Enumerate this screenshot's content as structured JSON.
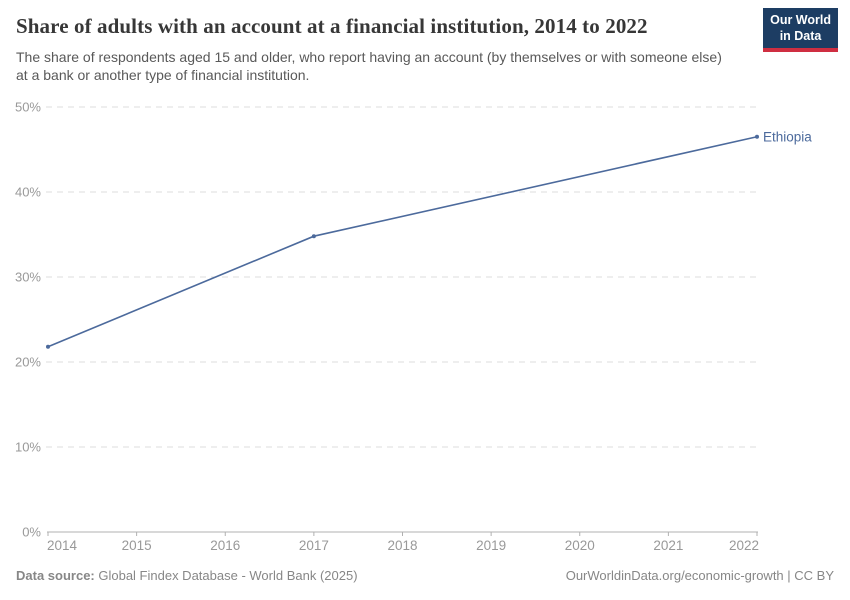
{
  "header": {
    "title": "Share of adults with an account at a financial institution, 2014 to 2022",
    "subtitle": "The share of respondents aged 15 and older, who report having an account (by themselves or with someone else) at a bank or another type of financial institution.",
    "logo": {
      "line1": "Our World",
      "line2": "in Data"
    }
  },
  "chart_data": {
    "type": "line",
    "title": "Share of adults with an account at a financial institution, 2014 to 2022",
    "x": [
      2014,
      2017,
      2022
    ],
    "series": [
      {
        "name": "Ethiopia",
        "color": "#4C6A9C",
        "values": [
          21.8,
          34.8,
          46.5
        ]
      }
    ],
    "xlim": [
      2014,
      2022
    ],
    "ylim": [
      0,
      50
    ],
    "x_ticks": [
      2014,
      2015,
      2016,
      2017,
      2018,
      2019,
      2020,
      2021,
      2022
    ],
    "y_ticks": [
      0,
      10,
      20,
      30,
      40,
      50
    ],
    "y_tick_suffix": "%",
    "grid": "horizontal-dashed",
    "legend_position": "end-of-line-label",
    "end_label": "Ethiopia"
  },
  "footer": {
    "source_label": "Data source:",
    "source_text": " Global Findex Database - World Bank (2025)",
    "link_text": "OurWorldinData.org/economic-growth | CC BY"
  },
  "colors": {
    "accent": "#4C6A9C",
    "grid": "#dcdcdc",
    "axis": "#b0b0b0",
    "tick_label": "#999999",
    "logo_bg": "#1d3d63",
    "logo_stripe": "#cf2e41"
  }
}
